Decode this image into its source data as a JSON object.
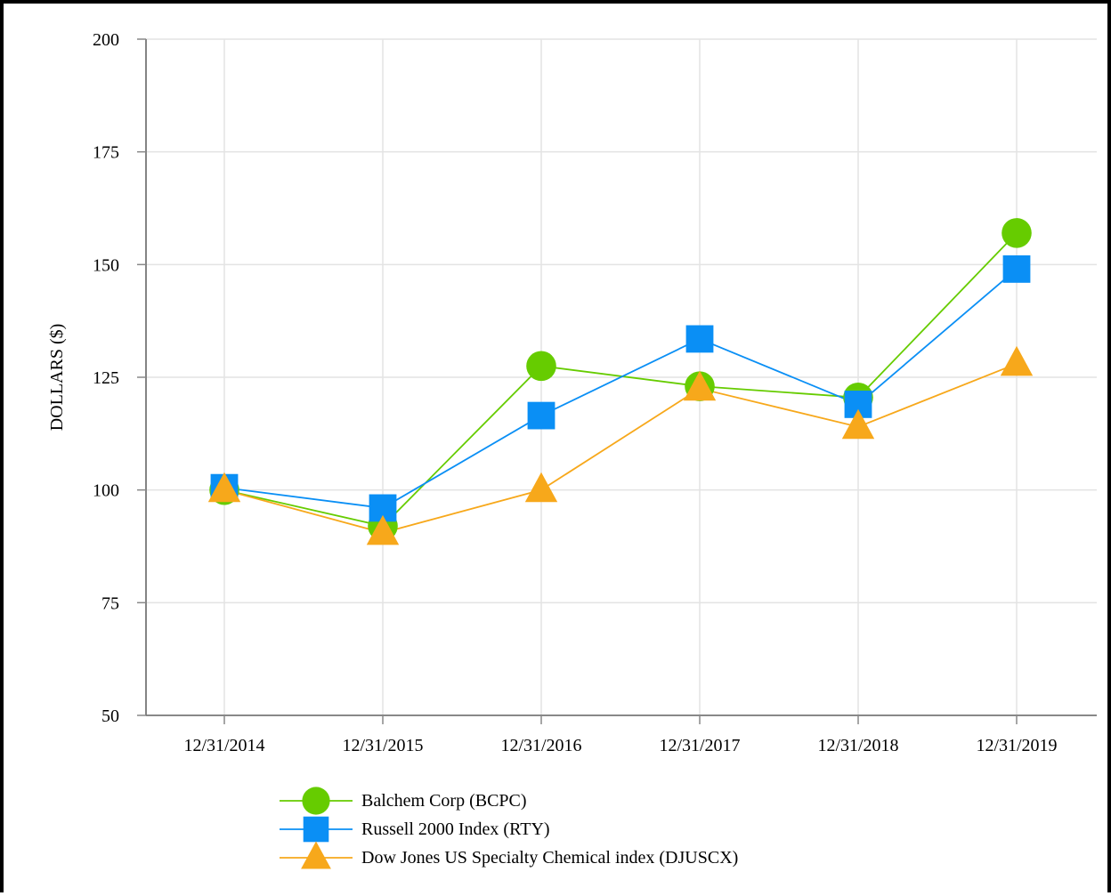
{
  "chart_data": {
    "type": "line",
    "title": "",
    "xlabel": "",
    "ylabel": "DOLLARS ($)",
    "ylim": [
      50,
      200
    ],
    "yticks": [
      50,
      75,
      100,
      125,
      150,
      175,
      200
    ],
    "categories": [
      "12/31/2014",
      "12/31/2015",
      "12/31/2016",
      "12/31/2017",
      "12/31/2018",
      "12/31/2019"
    ],
    "grid": true,
    "legend_position": "bottom",
    "series": [
      {
        "name": "Balchem Corp (BCPC)",
        "color": "#66cc00",
        "marker": "circle",
        "values": [
          100,
          92,
          127.5,
          123,
          120.5,
          157
        ]
      },
      {
        "name": "Russell 2000 Index (RTY)",
        "color": "#0a8ff5",
        "marker": "square",
        "values": [
          100.5,
          96,
          116.5,
          133.5,
          119,
          149
        ]
      },
      {
        "name": "Dow Jones US Specialty Chemical index (DJUSCX)",
        "color": "#f7a81b",
        "marker": "triangle",
        "values": [
          100,
          90.5,
          100,
          122.5,
          114,
          128
        ]
      }
    ]
  }
}
